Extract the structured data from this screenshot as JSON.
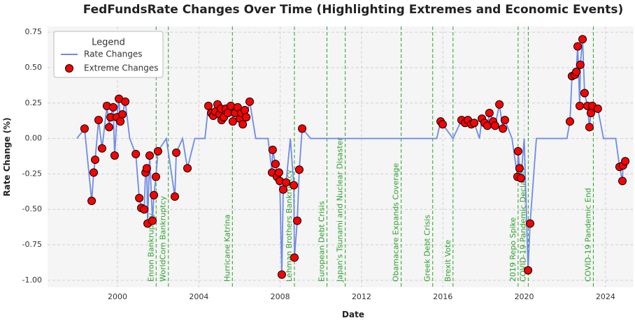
{
  "chart_data": {
    "type": "line",
    "title": "FedFundsRate Changes Over Time (Highlighting Extremes and Economic Events)",
    "x_label": "Date",
    "y_label": "Rate Change (%)",
    "xlim": [
      1996.56,
      2025.38
    ],
    "ylim": [
      -1.05,
      0.79
    ],
    "xticks": [
      2000,
      2004,
      2008,
      2012,
      2016,
      2020,
      2024
    ],
    "yticks": [
      {
        "value": -1.0,
        "label": "-1.00"
      },
      {
        "value": -0.75,
        "label": "-0.75"
      },
      {
        "value": -0.5,
        "label": "-0.50"
      },
      {
        "value": -0.25,
        "label": "-0.25"
      },
      {
        "value": 0,
        "label": "0.00"
      },
      {
        "value": 0.25,
        "label": "0.25"
      },
      {
        "value": 0.5,
        "label": "0.50"
      },
      {
        "value": 0.75,
        "label": "0.75"
      }
    ],
    "grid": true,
    "legend_title": "Legend",
    "legend_position": "upper-left",
    "series": [
      {
        "name": "Rate Changes",
        "type": "line",
        "color": "#6f8be6",
        "x": [
          1998.0,
          1998.38,
          1998.73,
          1998.83,
          1998.9,
          1999.07,
          1999.24,
          1999.48,
          1999.59,
          1999.66,
          1999.79,
          1999.86,
          1999.97,
          2000.07,
          2000.14,
          2000.24,
          2000.38,
          2000.6,
          2000.9,
          2001.07,
          2001.17,
          2001.31,
          2001.38,
          2001.44,
          2001.48,
          2001.58,
          2001.72,
          2001.79,
          2001.89,
          2001.99,
          2002.4,
          2002.82,
          2002.89,
          2003.2,
          2003.44,
          2003.8,
          2004.3,
          2004.47,
          2004.61,
          2004.71,
          2004.81,
          2004.92,
          2005.02,
          2005.09,
          2005.12,
          2005.23,
          2005.33,
          2005.43,
          2005.57,
          2005.67,
          2005.78,
          2005.91,
          2006.02,
          2006.09,
          2006.16,
          2006.26,
          2006.33,
          2006.5,
          2006.8,
          2007.4,
          2007.6,
          2007.63,
          2007.77,
          2007.84,
          2007.94,
          2007.98,
          2008.08,
          2008.15,
          2008.29,
          2008.5,
          2008.67,
          2008.7,
          2008.84,
          2008.94,
          2009.08,
          2009.5,
          2012.0,
          2015.7,
          2015.89,
          2015.99,
          2016.5,
          2016.92,
          2017.09,
          2017.23,
          2017.4,
          2017.54,
          2017.8,
          2017.92,
          2018.05,
          2018.19,
          2018.29,
          2018.47,
          2018.57,
          2018.78,
          2018.95,
          2019.05,
          2019.4,
          2019.67,
          2019.7,
          2019.77,
          2019.84,
          2020.0,
          2020.19,
          2020.29,
          2020.6,
          2022.1,
          2022.25,
          2022.35,
          2022.49,
          2022.56,
          2022.63,
          2022.73,
          2022.76,
          2022.87,
          2022.97,
          2023.11,
          2023.21,
          2023.28,
          2023.35,
          2023.62,
          2023.9,
          2024.5,
          2024.69,
          2024.83,
          2024.86,
          2024.97
        ],
        "values": [
          0.0,
          0.07,
          -0.44,
          -0.24,
          -0.15,
          0.13,
          -0.07,
          0.23,
          0.08,
          0.15,
          0.22,
          -0.12,
          0.15,
          0.28,
          0.12,
          0.17,
          0.26,
          0.0,
          -0.11,
          -0.42,
          -0.49,
          -0.5,
          -0.24,
          -0.21,
          -0.6,
          -0.12,
          -0.58,
          -0.4,
          -0.27,
          -0.09,
          0.0,
          -0.41,
          -0.1,
          0.0,
          -0.21,
          0.0,
          0.0,
          0.23,
          0.18,
          0.16,
          0.19,
          0.24,
          0.17,
          0.21,
          0.13,
          0.15,
          0.21,
          0.18,
          0.23,
          0.12,
          0.18,
          0.22,
          0.14,
          0.18,
          0.1,
          0.2,
          0.15,
          0.26,
          0.0,
          0.0,
          -0.24,
          -0.08,
          -0.18,
          -0.27,
          -0.24,
          -0.3,
          -0.96,
          -0.36,
          -0.31,
          0.0,
          -0.33,
          -0.84,
          -0.58,
          -0.22,
          0.07,
          0.0,
          0.0,
          0.0,
          0.12,
          0.1,
          0.0,
          0.13,
          0.11,
          0.13,
          0.1,
          0.11,
          0.0,
          0.14,
          0.11,
          0.09,
          0.18,
          0.12,
          0.09,
          0.24,
          0.07,
          0.13,
          0.0,
          -0.27,
          -0.09,
          -0.21,
          -0.28,
          0.0,
          -0.93,
          -0.6,
          0.0,
          0.0,
          0.12,
          0.44,
          0.45,
          0.47,
          0.65,
          0.23,
          0.52,
          0.7,
          0.32,
          0.23,
          0.08,
          0.18,
          0.23,
          0.21,
          0.0,
          0.0,
          -0.2,
          -0.3,
          -0.19,
          -0.16
        ]
      },
      {
        "name": "Extreme Changes",
        "type": "scatter",
        "color": "#ff0000",
        "x": [
          1998.38,
          1998.73,
          1998.83,
          1998.9,
          1999.07,
          1999.24,
          1999.48,
          1999.59,
          1999.66,
          1999.79,
          1999.86,
          1999.97,
          2000.07,
          2000.14,
          2000.24,
          2000.38,
          2000.9,
          2001.07,
          2001.17,
          2001.31,
          2001.38,
          2001.44,
          2001.48,
          2001.58,
          2001.72,
          2001.79,
          2001.89,
          2001.99,
          2002.82,
          2002.89,
          2003.44,
          2004.47,
          2004.61,
          2004.71,
          2004.81,
          2004.92,
          2005.02,
          2005.09,
          2005.12,
          2005.23,
          2005.33,
          2005.43,
          2005.57,
          2005.67,
          2005.78,
          2005.91,
          2006.02,
          2006.09,
          2006.16,
          2006.26,
          2006.33,
          2006.5,
          2007.6,
          2007.63,
          2007.77,
          2007.84,
          2007.94,
          2007.98,
          2008.08,
          2008.15,
          2008.29,
          2008.67,
          2008.7,
          2008.84,
          2008.94,
          2009.08,
          2015.89,
          2015.99,
          2016.92,
          2017.09,
          2017.23,
          2017.4,
          2017.54,
          2017.92,
          2018.05,
          2018.19,
          2018.29,
          2018.47,
          2018.57,
          2018.78,
          2018.95,
          2019.05,
          2019.67,
          2019.7,
          2019.77,
          2019.84,
          2020.19,
          2020.29,
          2022.25,
          2022.35,
          2022.49,
          2022.56,
          2022.63,
          2022.73,
          2022.76,
          2022.87,
          2022.97,
          2023.11,
          2023.21,
          2023.28,
          2023.35,
          2023.62,
          2024.69,
          2024.83,
          2024.86,
          2024.97
        ],
        "values": [
          0.07,
          -0.44,
          -0.24,
          -0.15,
          0.13,
          -0.07,
          0.23,
          0.08,
          0.15,
          0.22,
          -0.12,
          0.15,
          0.28,
          0.12,
          0.17,
          0.26,
          -0.11,
          -0.42,
          -0.49,
          -0.5,
          -0.24,
          -0.21,
          -0.6,
          -0.12,
          -0.58,
          -0.4,
          -0.27,
          -0.09,
          -0.41,
          -0.1,
          -0.21,
          0.23,
          0.18,
          0.16,
          0.19,
          0.24,
          0.17,
          0.21,
          0.13,
          0.15,
          0.21,
          0.18,
          0.23,
          0.12,
          0.18,
          0.22,
          0.14,
          0.18,
          0.1,
          0.2,
          0.15,
          0.26,
          -0.24,
          -0.08,
          -0.18,
          -0.27,
          -0.24,
          -0.3,
          -0.96,
          -0.36,
          -0.31,
          -0.33,
          -0.84,
          -0.58,
          -0.22,
          0.07,
          0.12,
          0.1,
          0.13,
          0.11,
          0.13,
          0.1,
          0.11,
          0.14,
          0.11,
          0.09,
          0.18,
          0.12,
          0.09,
          0.24,
          0.07,
          0.13,
          -0.27,
          -0.09,
          -0.21,
          -0.28,
          -0.93,
          -0.6,
          0.12,
          0.44,
          0.45,
          0.47,
          0.65,
          0.23,
          0.52,
          0.7,
          0.32,
          0.23,
          0.08,
          0.18,
          0.23,
          0.21,
          -0.2,
          -0.3,
          -0.19,
          -0.16
        ]
      }
    ],
    "events": [
      {
        "x": 2001.9,
        "label": "Enron Bankruptcy"
      },
      {
        "x": 2002.5,
        "label": "WorldCom Bankruptcy"
      },
      {
        "x": 2005.65,
        "label": "Hurricane Katrina"
      },
      {
        "x": 2008.7,
        "label": "Lehman Brothers Bankruptcy"
      },
      {
        "x": 2010.3,
        "label": "European Debt Crisis"
      },
      {
        "x": 2011.2,
        "label": "Japan's Tsunami and Nuclear Disaster"
      },
      {
        "x": 2013.95,
        "label": "Obamacare Expands Coverage"
      },
      {
        "x": 2015.5,
        "label": "Greek Debt Crisis"
      },
      {
        "x": 2016.5,
        "label": "Brexit Vote"
      },
      {
        "x": 2019.7,
        "label": "2019 Repo Spike"
      },
      {
        "x": 2020.2,
        "label": "COVID-19 Pandemic Declared"
      },
      {
        "x": 2023.4,
        "label": "COVID-19 Pandemic End"
      }
    ],
    "event_color": "#2ca02c"
  }
}
